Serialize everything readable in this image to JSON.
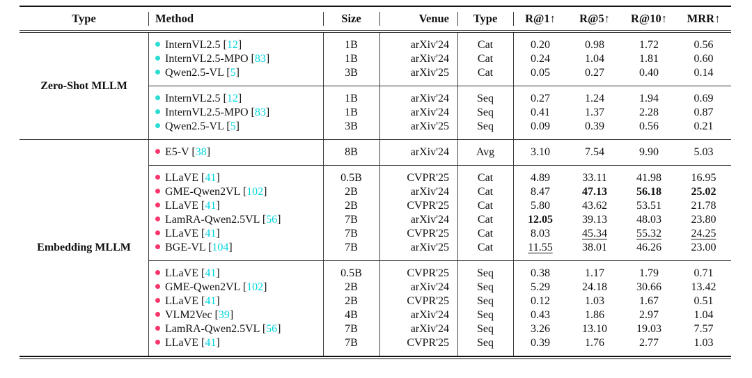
{
  "colors": {
    "zero_shot_bullet": "#2bdcd2",
    "embedding_bullet": "#f8356b",
    "citation": "#00d6de",
    "rule": "#111111"
  },
  "table": {
    "headers": {
      "type": "Type",
      "method": "Method",
      "size": "Size",
      "venue": "Venue",
      "rtype": "Type",
      "r1": "R@1↑",
      "r5": "R@5↑",
      "r10": "R@10↑",
      "mrr": "MRR↑"
    },
    "groups": [
      {
        "label": "Zero-Shot MLLM",
        "subgroups": [
          {
            "rows": [
              {
                "method": "InternVL2.5",
                "cite": "12",
                "size": "1B",
                "venue": "arXiv'24",
                "rtype": "Cat",
                "m": [
                  "0.20",
                  "0.98",
                  "1.72",
                  "0.56"
                ]
              },
              {
                "method": "InternVL2.5-MPO",
                "cite": "83",
                "size": "1B",
                "venue": "arXiv'24",
                "rtype": "Cat",
                "m": [
                  "0.24",
                  "1.04",
                  "1.81",
                  "0.60"
                ]
              },
              {
                "method": "Qwen2.5-VL",
                "cite": "5",
                "size": "3B",
                "venue": "arXiv'25",
                "rtype": "Cat",
                "m": [
                  "0.05",
                  "0.27",
                  "0.40",
                  "0.14"
                ]
              }
            ]
          },
          {
            "rows": [
              {
                "method": "InternVL2.5",
                "cite": "12",
                "size": "1B",
                "venue": "arXiv'24",
                "rtype": "Seq",
                "m": [
                  "0.27",
                  "1.24",
                  "1.94",
                  "0.69"
                ]
              },
              {
                "method": "InternVL2.5-MPO",
                "cite": "83",
                "size": "1B",
                "venue": "arXiv'24",
                "rtype": "Seq",
                "m": [
                  "0.41",
                  "1.37",
                  "2.28",
                  "0.87"
                ]
              },
              {
                "method": "Qwen2.5-VL",
                "cite": "5",
                "size": "3B",
                "venue": "arXiv'25",
                "rtype": "Seq",
                "m": [
                  "0.09",
                  "0.39",
                  "0.56",
                  "0.21"
                ]
              }
            ]
          }
        ]
      },
      {
        "label": "Embedding MLLM",
        "subgroups": [
          {
            "rows": [
              {
                "method": "E5-V",
                "cite": "38",
                "size": "8B",
                "venue": "arXiv'24",
                "rtype": "Avg",
                "m": [
                  "3.10",
                  "7.54",
                  "9.90",
                  "5.03"
                ]
              }
            ]
          },
          {
            "rows": [
              {
                "method": "LLaVE",
                "cite": "41",
                "size": "0.5B",
                "venue": "CVPR'25",
                "rtype": "Cat",
                "m": [
                  "4.89",
                  "33.11",
                  "41.98",
                  "16.95"
                ]
              },
              {
                "method": "GME-Qwen2VL",
                "cite": "102",
                "size": "2B",
                "venue": "arXiv'24",
                "rtype": "Cat",
                "m": [
                  "8.47",
                  "47.13",
                  "56.18",
                  "25.02"
                ],
                "em": [
                  "",
                  "bold",
                  "bold",
                  "bold"
                ]
              },
              {
                "method": "LLaVE",
                "cite": "41",
                "size": "2B",
                "venue": "CVPR'25",
                "rtype": "Cat",
                "m": [
                  "5.80",
                  "43.62",
                  "53.51",
                  "21.78"
                ]
              },
              {
                "method": "LamRA-Qwen2.5VL",
                "cite": "56",
                "size": "7B",
                "venue": "arXiv'24",
                "rtype": "Cat",
                "m": [
                  "12.05",
                  "39.13",
                  "48.03",
                  "23.80"
                ],
                "em": [
                  "bold",
                  "",
                  "",
                  ""
                ]
              },
              {
                "method": "LLaVE",
                "cite": "41",
                "size": "7B",
                "venue": "CVPR'25",
                "rtype": "Cat",
                "m": [
                  "8.03",
                  "45.34",
                  "55.32",
                  "24.25"
                ],
                "em": [
                  "",
                  "underline",
                  "underline",
                  "underline"
                ]
              },
              {
                "method": "BGE-VL",
                "cite": "104",
                "size": "7B",
                "venue": "arXiv'25",
                "rtype": "Cat",
                "m": [
                  "11.55",
                  "38.01",
                  "46.26",
                  "23.00"
                ],
                "em": [
                  "underline",
                  "",
                  "",
                  ""
                ]
              }
            ]
          },
          {
            "rows": [
              {
                "method": "LLaVE",
                "cite": "41",
                "size": "0.5B",
                "venue": "CVPR'25",
                "rtype": "Seq",
                "m": [
                  "0.38",
                  "1.17",
                  "1.79",
                  "0.71"
                ]
              },
              {
                "method": "GME-Qwen2VL",
                "cite": "102",
                "size": "2B",
                "venue": "arXiv'24",
                "rtype": "Seq",
                "m": [
                  "5.29",
                  "24.18",
                  "30.66",
                  "13.42"
                ]
              },
              {
                "method": "LLaVE",
                "cite": "41",
                "size": "2B",
                "venue": "CVPR'25",
                "rtype": "Seq",
                "m": [
                  "0.12",
                  "1.03",
                  "1.67",
                  "0.51"
                ]
              },
              {
                "method": "VLM2Vec",
                "cite": "39",
                "size": "4B",
                "venue": "arXiv'24",
                "rtype": "Seq",
                "m": [
                  "0.43",
                  "1.86",
                  "2.97",
                  "1.04"
                ]
              },
              {
                "method": "LamRA-Qwen2.5VL",
                "cite": "56",
                "size": "7B",
                "venue": "arXiv'24",
                "rtype": "Seq",
                "m": [
                  "3.26",
                  "13.10",
                  "19.03",
                  "7.57"
                ]
              },
              {
                "method": "LLaVE",
                "cite": "41",
                "size": "7B",
                "venue": "CVPR'25",
                "rtype": "Seq",
                "m": [
                  "0.39",
                  "1.76",
                  "2.77",
                  "1.03"
                ]
              }
            ]
          }
        ]
      }
    ]
  }
}
